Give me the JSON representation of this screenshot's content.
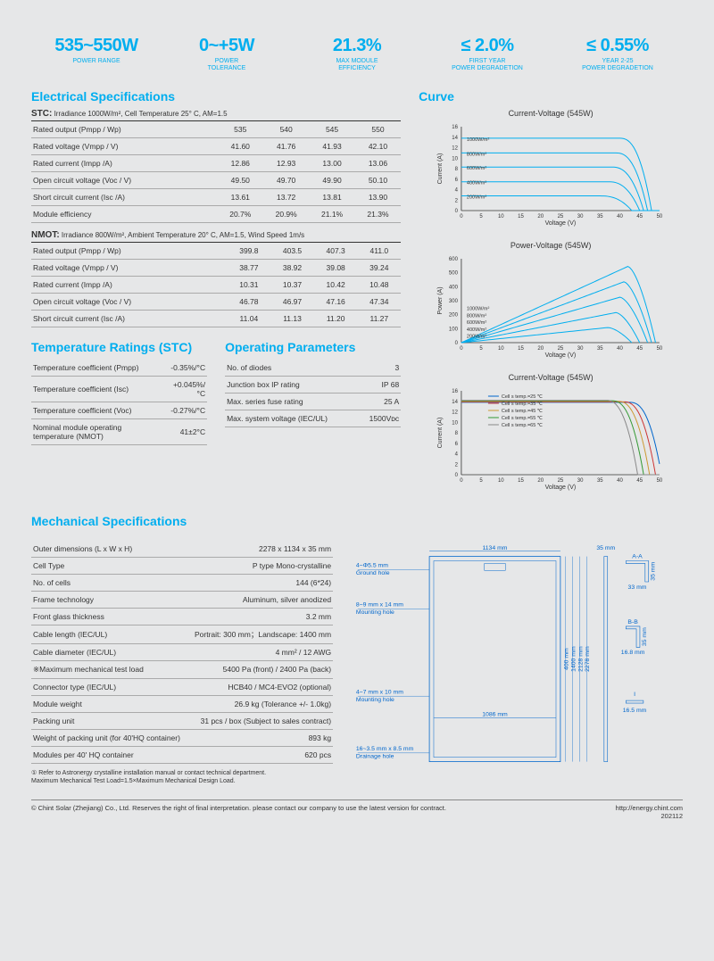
{
  "top_stats": [
    {
      "val": "535~550W",
      "lbl": "POWER RANGE"
    },
    {
      "val": "0~+5W",
      "lbl": "POWER\nTOLERANCE"
    },
    {
      "val": "21.3%",
      "lbl": "MAX  MODULE\nEFFICIENCY"
    },
    {
      "val": "≤ 2.0%",
      "lbl": "FIRST YEAR\nPOWER DEGRADETION"
    },
    {
      "val": "≤ 0.55%",
      "lbl": "YEAR 2-25\nPOWER DEGRADETION"
    }
  ],
  "sections": {
    "electrical": "Electrical Specifications",
    "curve": "Curve",
    "temp": "Temperature Ratings (STC)",
    "op": "Operating Parameters",
    "mech": "Mechanical Specifications"
  },
  "stc_header": {
    "bold": "STC:",
    "rest": " Irradiance 1000W/m², Cell Temperature 25° C, AM=1.5"
  },
  "nmot_header": {
    "bold": "NMOT:",
    "rest": " Irradiance 800W/m², Ambient Temperature 20° C, AM=1.5, Wind Speed 1m/s"
  },
  "stc_rows": [
    [
      "Rated output (Pmpp / Wp)",
      "535",
      "540",
      "545",
      "550"
    ],
    [
      "Rated voltage (Vmpp / V)",
      "41.60",
      "41.76",
      "41.93",
      "42.10"
    ],
    [
      "Rated current (Impp /A)",
      "12.86",
      "12.93",
      "13.00",
      "13.06"
    ],
    [
      "Open circuit voltage (Voc / V)",
      "49.50",
      "49.70",
      "49.90",
      "50.10"
    ],
    [
      "Short circuit current (Isc /A)",
      "13.61",
      "13.72",
      "13.81",
      "13.90"
    ],
    [
      "Module efficiency",
      "20.7%",
      "20.9%",
      "21.1%",
      "21.3%"
    ]
  ],
  "nmot_rows": [
    [
      "Rated output (Pmpp / Wp)",
      "399.8",
      "403.5",
      "407.3",
      "411.0"
    ],
    [
      "Rated voltage (Vmpp / V)",
      "38.77",
      "38.92",
      "39.08",
      "39.24"
    ],
    [
      "Rated current (Impp /A)",
      "10.31",
      "10.37",
      "10.42",
      "10.48"
    ],
    [
      "Open circuit voltage (Voc / V)",
      "46.78",
      "46.97",
      "47.16",
      "47.34"
    ],
    [
      "Short circuit current (Isc /A)",
      "11.04",
      "11.13",
      "11.20",
      "11.27"
    ]
  ],
  "temp_rows": [
    [
      "Temperature coefficient (Pmpp)",
      "-0.35%/°C"
    ],
    [
      "Temperature coefficient (Isc)",
      "+0.045%/°C"
    ],
    [
      "Temperature coefficient (Voc)",
      "-0.27%/°C"
    ],
    [
      "Nominal module operating temperature (NMOT)",
      "41±2°C"
    ]
  ],
  "op_rows": [
    [
      "No. of diodes",
      "3"
    ],
    [
      "Junction box IP rating",
      "IP 68"
    ],
    [
      "Max. series fuse rating",
      "25 A"
    ],
    [
      "Max. system voltage (IEC/UL)",
      "1500Vᴅᴄ"
    ]
  ],
  "mech_rows": [
    [
      "Outer dimensions (L x W x H)",
      "2278 x 1134 x 35 mm"
    ],
    [
      "Cell Type",
      "P type Mono-crystalline"
    ],
    [
      "No. of cells",
      "144 (6*24)"
    ],
    [
      "Frame technology",
      "Aluminum, silver anodized"
    ],
    [
      "Front glass thickness",
      "3.2 mm"
    ],
    [
      "Cable length (IEC/UL)",
      "Portrait: 300 mm；Landscape:  1400 mm"
    ],
    [
      "Cable diameter (IEC/UL)",
      "4 mm² / 12 AWG"
    ],
    [
      "※Maximum mechanical test load",
      "5400 Pa (front) / 2400 Pa (back)"
    ],
    [
      "Connector type (IEC/UL)",
      "HCB40 / MC4-EVO2 (optional)"
    ],
    [
      "Module weight",
      "26.9 kg (Tolerance +/- 1.0kg)"
    ],
    [
      "Packing unit",
      "31 pcs / box (Subject to sales contract)"
    ],
    [
      "Weight of packing unit (for 40'HQ container)",
      "893 kg"
    ],
    [
      "Modules per 40' HQ container",
      "620 pcs"
    ]
  ],
  "charts": {
    "iv": {
      "title": "Current-Voltage  (545W)",
      "xlabel": "Voltage (V)",
      "ylabel": "Current (A)",
      "xlim": [
        0,
        50
      ],
      "ylim": [
        0,
        16
      ],
      "xtick": 5,
      "ytick": 2,
      "legends": [
        "1000W/m²",
        "800W/m²",
        "600W/m²",
        "400W/m²",
        "200W/m²"
      ],
      "series": [
        {
          "color": "#00aeef",
          "flat": 13.8,
          "drop": 46
        },
        {
          "color": "#00aeef",
          "flat": 11.0,
          "drop": 45
        },
        {
          "color": "#00aeef",
          "flat": 8.3,
          "drop": 44
        },
        {
          "color": "#00aeef",
          "flat": 5.5,
          "drop": 43
        },
        {
          "color": "#00aeef",
          "flat": 2.8,
          "drop": 41
        }
      ]
    },
    "pv": {
      "title": "Power-Voltage  (545W)",
      "xlabel": "Voltage (V)",
      "ylabel": "Power (A)",
      "xlim": [
        0,
        50
      ],
      "ylim": [
        0,
        600
      ],
      "xtick": 5,
      "ytick": 100,
      "legends": [
        "1000W/m²",
        "800W/m²",
        "600W/m²",
        "400W/m²",
        "200W/m²"
      ],
      "series": [
        {
          "color": "#00aeef",
          "peak_x": 42,
          "peak_y": 545,
          "end": 49
        },
        {
          "color": "#00aeef",
          "peak_x": 41,
          "peak_y": 435,
          "end": 48
        },
        {
          "color": "#00aeef",
          "peak_x": 40,
          "peak_y": 325,
          "end": 47
        },
        {
          "color": "#00aeef",
          "peak_x": 39,
          "peak_y": 215,
          "end": 45
        },
        {
          "color": "#00aeef",
          "peak_x": 37,
          "peak_y": 108,
          "end": 43
        }
      ]
    },
    "iv_temp": {
      "title": "Current-Voltage  (545W)",
      "xlabel": "Voltage (V)",
      "ylabel": "Current (A)",
      "xlim": [
        0,
        50
      ],
      "ylim": [
        0,
        16
      ],
      "xtick": 5,
      "ytick": 2,
      "legends": [
        "Cell s temp.=25 ℃",
        "Cell s temp.=35 ℃",
        "Cell s temp.=45 ℃",
        "Cell s temp.=55 ℃",
        "Cell s temp.=65 ℃"
      ],
      "legend_colors": [
        "#0066cc",
        "#cc3333",
        "#cc9933",
        "#339933",
        "#888888"
      ],
      "series": [
        {
          "color": "#0066cc",
          "flat": 13.8,
          "drop": 48.5
        },
        {
          "color": "#cc3333",
          "flat": 13.9,
          "drop": 47
        },
        {
          "color": "#cc9933",
          "flat": 14.0,
          "drop": 45.5
        },
        {
          "color": "#339933",
          "flat": 14.1,
          "drop": 44
        },
        {
          "color": "#888888",
          "flat": 14.2,
          "drop": 42.5
        }
      ]
    }
  },
  "diagram": {
    "width_label": "1134 mm",
    "inner_width": "1086 mm",
    "heights": [
      "400 mm",
      "1400 mm",
      "2128 mm",
      "2278 mm"
    ],
    "frame_w": "35 mm",
    "section_aa": "A-A",
    "section_bb": "B-B",
    "section_i": "I",
    "aa_w": "33 mm",
    "aa_h": "35 mm",
    "bb_w": "16.8 mm",
    "bb_h": "35 mm",
    "i_w": "16.5 mm",
    "callouts": [
      {
        "t1": "4~Φ5.5 mm",
        "t2": "Ground hole"
      },
      {
        "t1": "8~9 mm x 14 mm",
        "t2": "Mounting hole"
      },
      {
        "t1": "4~7 mm x 10 mm",
        "t2": "Mounting hole"
      },
      {
        "t1": "16~3.5 mm x 8.5 mm",
        "t2": "Drainage hole"
      }
    ]
  },
  "footnote": "① Refer to Astronergy crystalline installation manual or contact technical department.\nMaximum Mechanical Test Load=1.5×Maximum Mechanical Design Load.",
  "footer": {
    "left": "© Chint Solar (Zhejiang) Co., Ltd. Reserves the right of final interpretation. please contact our company to use the latest version for contract.",
    "url": "http://energy.chint.com",
    "date": "202112"
  }
}
